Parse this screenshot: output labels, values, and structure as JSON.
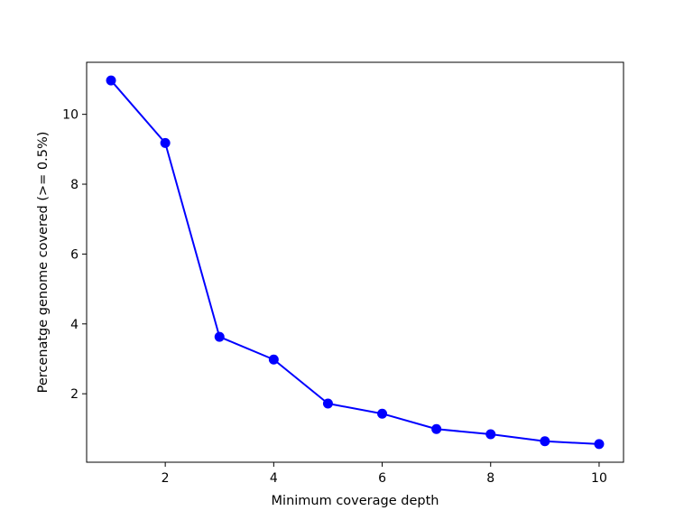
{
  "chart_data": {
    "type": "line",
    "title": "",
    "xlabel": "Minimum coverage depth",
    "ylabel": "Percenatge genome covered (>= 0.5%)",
    "x": [
      1,
      2,
      3,
      4,
      5,
      6,
      7,
      8,
      9,
      10
    ],
    "series": [
      {
        "values": [
          10.97,
          9.18,
          3.63,
          2.98,
          1.72,
          1.43,
          0.99,
          0.84,
          0.64,
          0.56
        ],
        "color": "#0000ff",
        "marker": "circle"
      }
    ],
    "xlim": [
      0.55,
      10.45
    ],
    "ylim": [
      0.04,
      11.49
    ],
    "xticks": [
      2,
      4,
      6,
      8,
      10
    ],
    "xtick_labels": [
      "2",
      "4",
      "6",
      "8",
      "10"
    ],
    "yticks": [
      2,
      4,
      6,
      8,
      10
    ],
    "ytick_labels": [
      "2",
      "4",
      "6",
      "8",
      "10"
    ],
    "grid": false,
    "legend": "none"
  }
}
